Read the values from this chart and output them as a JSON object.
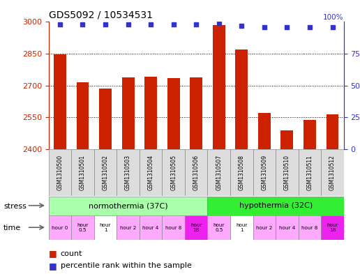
{
  "title": "GDS5092 / 10534531",
  "samples": [
    "GSM1310500",
    "GSM1310501",
    "GSM1310502",
    "GSM1310503",
    "GSM1310504",
    "GSM1310505",
    "GSM1310506",
    "GSM1310507",
    "GSM1310508",
    "GSM1310509",
    "GSM1310510",
    "GSM1310511",
    "GSM1310512"
  ],
  "counts": [
    2848,
    2715,
    2685,
    2740,
    2742,
    2735,
    2740,
    2985,
    2870,
    2570,
    2490,
    2540,
    2565
  ],
  "percentiles": [
    98,
    98,
    98,
    98,
    98,
    98,
    98,
    99,
    97,
    96,
    96,
    96,
    96
  ],
  "ymin": 2400,
  "ymax": 3000,
  "yticks": [
    2400,
    2550,
    2700,
    2850,
    3000
  ],
  "right_yticks": [
    0,
    25,
    50,
    75
  ],
  "bar_color": "#cc2200",
  "dot_color": "#3333cc",
  "stress_groups": [
    {
      "label": "normothermia (37C)",
      "start": 0,
      "end": 7,
      "color": "#aaffaa"
    },
    {
      "label": "hypothermia (32C)",
      "start": 7,
      "end": 13,
      "color": "#33ee33"
    }
  ],
  "time_labels": [
    "hour 0",
    "hour\n0.5",
    "hour\n1",
    "hour 2",
    "hour 4",
    "hour 8",
    "hour\n18",
    "hour\n0.5",
    "hour\n1",
    "hour 2",
    "hour 4",
    "hour 8",
    "hour\n18"
  ],
  "time_colors": [
    "#ffaaff",
    "#ffaaff",
    "#ffffff",
    "#ffaaff",
    "#ffaaff",
    "#ffaaff",
    "#ee22ee",
    "#ffaaff",
    "#ffffff",
    "#ffaaff",
    "#ffaaff",
    "#ffaaff",
    "#ee22ee"
  ],
  "sample_box_color": "#dddddd",
  "bg_color": "#ffffff",
  "label_color_red": "#cc2200",
  "label_color_blue": "#3333cc"
}
